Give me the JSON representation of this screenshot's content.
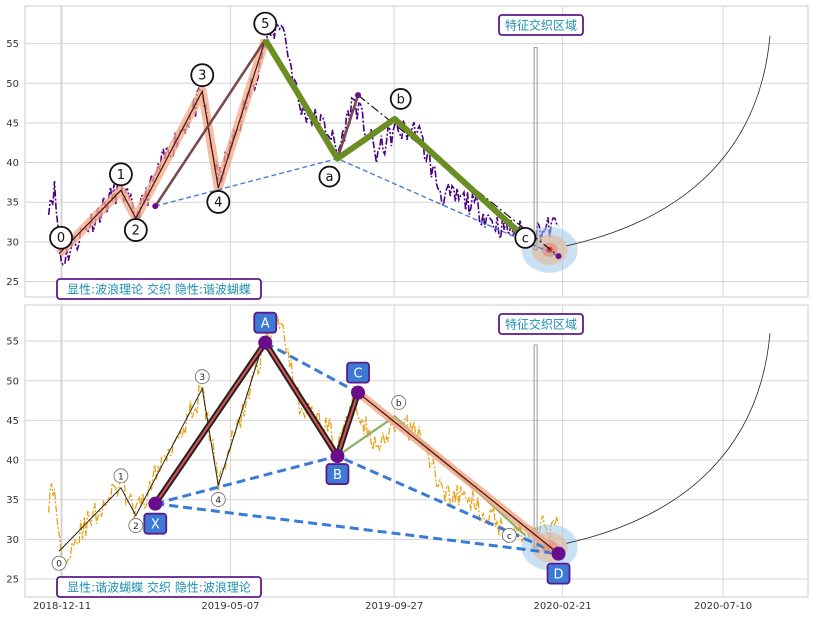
{
  "chart_data": [
    {
      "type": "line",
      "panel": "top",
      "title_box": "特征交织区域",
      "legend_text": "显性:波浪理论 交织 隐性:谐波蝴蝶",
      "ylim": [
        23,
        60
      ],
      "y_ticks": [
        25,
        30,
        35,
        40,
        45,
        50,
        55
      ],
      "grid": true,
      "price_color": "#4b0082",
      "wave_points": [
        {
          "label": "0",
          "date": "2019-01-01",
          "value": 28.5
        },
        {
          "label": "1",
          "date": "2019-02-24",
          "value": 36.5
        },
        {
          "label": "2",
          "date": "2019-03-09",
          "value": 33.0
        },
        {
          "label": "3",
          "date": "2019-05-06",
          "value": 49.0
        },
        {
          "label": "4",
          "date": "2019-05-20",
          "value": 36.8
        },
        {
          "label": "5",
          "date": "2019-06-30",
          "value": 55.5
        },
        {
          "label": "a",
          "date": "2019-09-01",
          "value": 40.5
        },
        {
          "label": "b",
          "date": "2019-10-21",
          "value": 45.5
        },
        {
          "label": "c",
          "date": "2020-02-12",
          "value": 30.5
        }
      ]
    },
    {
      "type": "line",
      "panel": "bottom",
      "title_box": "特征交织区域",
      "legend_text": "显性:谐波蝴蝶 交织 隐性:波浪理论",
      "ylim": [
        23,
        60
      ],
      "y_ticks": [
        25,
        30,
        35,
        40,
        45,
        50,
        55
      ],
      "x_ticks": [
        "2018-12-11",
        "2019-05-07",
        "2019-09-27",
        "2020-02-21",
        "2020-07-10"
      ],
      "grid": true,
      "price_color": "#e8a317",
      "harmonic_points": [
        {
          "label": "X",
          "date": "2019-03-26",
          "value": 34.5
        },
        {
          "label": "A",
          "date": "2019-06-30",
          "value": 54.8
        },
        {
          "label": "B",
          "date": "2019-09-01",
          "value": 40.5
        },
        {
          "label": "C",
          "date": "2019-09-19",
          "value": 48.5
        },
        {
          "label": "D",
          "date": "2020-03-12",
          "value": 28.2
        }
      ]
    }
  ]
}
